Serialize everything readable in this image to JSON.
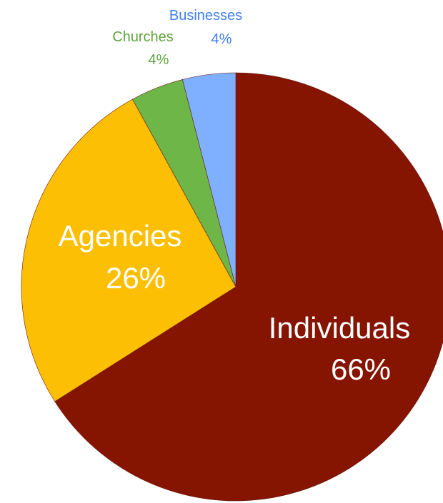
{
  "chart_data": {
    "type": "pie",
    "title": "",
    "start": "12 o'clock",
    "direction": "clockwise",
    "slices": [
      {
        "label": "Individuals",
        "value": 66,
        "value_label": "66%",
        "color": "#851400",
        "label_color": "#ffffff"
      },
      {
        "label": "Agencies",
        "value": 26,
        "value_label": "26%",
        "color": "#fcbf03",
        "label_color": "#ffffff"
      },
      {
        "label": "Churches",
        "value": 4,
        "value_label": "4%",
        "color": "#6fb648",
        "label_color": "#5fa33c"
      },
      {
        "label": "Businesses",
        "value": 4,
        "value_label": "4%",
        "color": "#7fb0ff",
        "label_color": "#3f7df0"
      }
    ]
  }
}
